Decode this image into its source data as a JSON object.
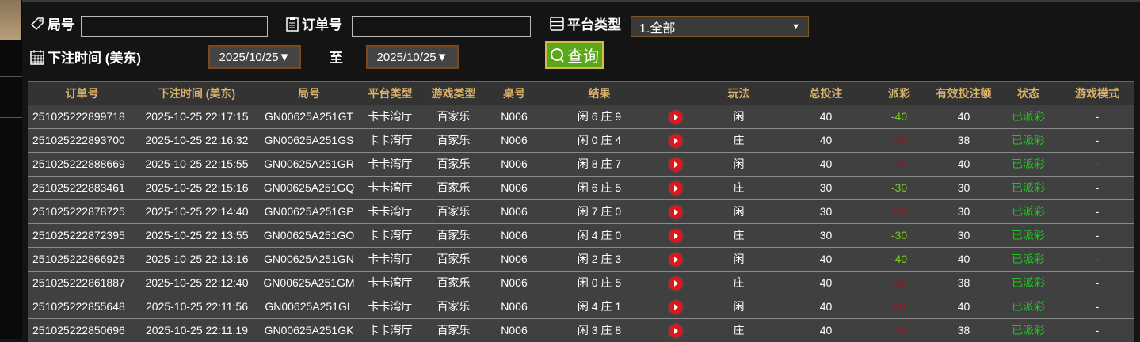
{
  "filters": {
    "round_label": "局号",
    "round_value": "",
    "order_label": "订单号",
    "order_value": "",
    "platform_label": "平台类型",
    "platform_value": "1.全部",
    "time_label": "下注时间 (美东)",
    "date_from": "2025/10/25▼",
    "to_label": "至",
    "date_to": "2025/10/25▼",
    "query_label": "查询"
  },
  "icons": {
    "round": "tag-icon",
    "order": "clipboard-icon",
    "platform": "server-icon",
    "time": "calendar-icon",
    "query": "search-icon",
    "result": "play-icon"
  },
  "colors": {
    "header_text": "#d9b36a",
    "negative": "#7acb1e",
    "positive": "#8a1a2a",
    "status": "#1ec81e",
    "query_button": "#5aa81a"
  },
  "table": {
    "headers": [
      "订单号",
      "下注时间 (美东)",
      "局号",
      "平台类型",
      "游戏类型",
      "桌号",
      "结果",
      "",
      "玩法",
      "总投注",
      "派彩",
      "有效投注额",
      "状态",
      "游戏模式"
    ],
    "rows": [
      [
        "251025222899718",
        "2025-10-25 22:17:15",
        "GN00625A251GT",
        "卡卡湾厅",
        "百家乐",
        "N006",
        "闲 6 庄 9",
        "",
        "闲",
        "40",
        "-40",
        "40",
        "已派彩",
        "-"
      ],
      [
        "251025222893700",
        "2025-10-25 22:16:32",
        "GN00625A251GS",
        "卡卡湾厅",
        "百家乐",
        "N006",
        "闲 0 庄 4",
        "",
        "庄",
        "40",
        "38",
        "38",
        "已派彩",
        "-"
      ],
      [
        "251025222888669",
        "2025-10-25 22:15:55",
        "GN00625A251GR",
        "卡卡湾厅",
        "百家乐",
        "N006",
        "闲 8 庄 7",
        "",
        "闲",
        "40",
        "40",
        "40",
        "已派彩",
        "-"
      ],
      [
        "251025222883461",
        "2025-10-25 22:15:16",
        "GN00625A251GQ",
        "卡卡湾厅",
        "百家乐",
        "N006",
        "闲 6 庄 5",
        "",
        "庄",
        "30",
        "-30",
        "30",
        "已派彩",
        "-"
      ],
      [
        "251025222878725",
        "2025-10-25 22:14:40",
        "GN00625A251GP",
        "卡卡湾厅",
        "百家乐",
        "N006",
        "闲 7 庄 0",
        "",
        "闲",
        "30",
        "30",
        "30",
        "已派彩",
        "-"
      ],
      [
        "251025222872395",
        "2025-10-25 22:13:55",
        "GN00625A251GO",
        "卡卡湾厅",
        "百家乐",
        "N006",
        "闲 4 庄 0",
        "",
        "庄",
        "30",
        "-30",
        "30",
        "已派彩",
        "-"
      ],
      [
        "251025222866925",
        "2025-10-25 22:13:16",
        "GN00625A251GN",
        "卡卡湾厅",
        "百家乐",
        "N006",
        "闲 2 庄 3",
        "",
        "闲",
        "40",
        "-40",
        "40",
        "已派彩",
        "-"
      ],
      [
        "251025222861887",
        "2025-10-25 22:12:40",
        "GN00625A251GM",
        "卡卡湾厅",
        "百家乐",
        "N006",
        "闲 0 庄 5",
        "",
        "庄",
        "40",
        "38",
        "38",
        "已派彩",
        "-"
      ],
      [
        "251025222855648",
        "2025-10-25 22:11:56",
        "GN00625A251GL",
        "卡卡湾厅",
        "百家乐",
        "N006",
        "闲 4 庄 1",
        "",
        "闲",
        "40",
        "40",
        "40",
        "已派彩",
        "-"
      ],
      [
        "251025222850696",
        "2025-10-25 22:11:19",
        "GN00625A251GK",
        "卡卡湾厅",
        "百家乐",
        "N006",
        "闲 3 庄 8",
        "",
        "庄",
        "40",
        "38",
        "38",
        "已派彩",
        "-"
      ]
    ]
  }
}
